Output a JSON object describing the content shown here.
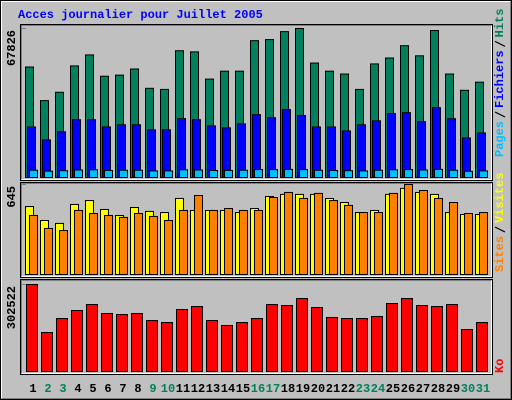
{
  "chart_data": [
    {
      "type": "bar",
      "title": "Acces journalier pour Juillet 2005",
      "ylim": [
        0,
        67826
      ],
      "yticks": [
        67826
      ],
      "series": [
        {
          "name": "Hits",
          "color": "#00805c",
          "values": [
            50300,
            35000,
            38800,
            50800,
            55800,
            46100,
            46600,
            49400,
            40600,
            40100,
            57700,
            57200,
            44800,
            48400,
            48400,
            62300,
            62800,
            66400,
            67826,
            52100,
            48400,
            47100,
            40100,
            51700,
            54400,
            60000,
            55400,
            66900,
            47100,
            39700,
            43400
          ]
        },
        {
          "name": "Fichiers",
          "color": "#0000ff",
          "values": [
            23000,
            17100,
            20800,
            26300,
            26300,
            23000,
            24000,
            24000,
            21700,
            21700,
            26800,
            26300,
            23500,
            22600,
            24400,
            28600,
            27200,
            30900,
            28200,
            23000,
            23000,
            21200,
            24000,
            25800,
            29100,
            29500,
            25400,
            31800,
            26800,
            18000,
            20300
          ]
        },
        {
          "name": "Pages",
          "color": "#00c0ff",
          "values": [
            3300,
            2900,
            3100,
            3400,
            3500,
            3200,
            3300,
            3300,
            3000,
            3000,
            3500,
            3400,
            3200,
            3200,
            3300,
            3600,
            3600,
            3700,
            3600,
            3300,
            3200,
            3100,
            3000,
            3300,
            3500,
            3600,
            3400,
            3700,
            3300,
            2800,
            3000
          ]
        }
      ]
    },
    {
      "type": "bar",
      "ylim": [
        0,
        645
      ],
      "yticks": [
        645
      ],
      "series": [
        {
          "name": "Visites",
          "color": "#ffff00",
          "values": [
            487,
            387,
            366,
            502,
            530,
            466,
            423,
            480,
            452,
            444,
            545,
            459,
            459,
            459,
            444,
            473,
            559,
            574,
            574,
            574,
            545,
            516,
            444,
            459,
            574,
            617,
            588,
            574,
            444,
            430,
            430
          ]
        },
        {
          "name": "Sites",
          "color": "#ff8000",
          "values": [
            423,
            330,
            315,
            459,
            437,
            423,
            409,
            437,
            416,
            387,
            459,
            566,
            459,
            473,
            459,
            459,
            552,
            588,
            545,
            581,
            530,
            495,
            444,
            444,
            581,
            645,
            602,
            545,
            516,
            437,
            444
          ]
        }
      ]
    },
    {
      "type": "bar",
      "ylim": [
        0,
        302522
      ],
      "yticks": [
        302522
      ],
      "categories": [
        1,
        2,
        3,
        4,
        5,
        6,
        7,
        8,
        9,
        10,
        11,
        12,
        13,
        14,
        15,
        16,
        17,
        18,
        19,
        20,
        21,
        22,
        23,
        24,
        25,
        26,
        27,
        28,
        29,
        30,
        31
      ],
      "category_label_colors": [
        "#000000",
        "#00805c",
        "#00805c",
        "#000000",
        "#000000",
        "#000000",
        "#000000",
        "#000000",
        "#00805c",
        "#00805c",
        "#000000",
        "#000000",
        "#000000",
        "#000000",
        "#000000",
        "#00805c",
        "#00805c",
        "#000000",
        "#000000",
        "#000000",
        "#000000",
        "#000000",
        "#00805c",
        "#00805c",
        "#000000",
        "#000000",
        "#000000",
        "#000000",
        "#000000",
        "#00805c",
        "#00805c"
      ],
      "series": [
        {
          "name": "Ko",
          "color": "#ff0000",
          "values": [
            302522,
            135600,
            184300,
            212100,
            232900,
            201700,
            198200,
            201700,
            177300,
            170400,
            215600,
            226000,
            177300,
            160000,
            170400,
            184300,
            232900,
            229400,
            253800,
            222500,
            187800,
            184300,
            184300,
            191300,
            236400,
            253800,
            229400,
            226000,
            232900,
            146000,
            170400
          ]
        }
      ]
    }
  ]
}
